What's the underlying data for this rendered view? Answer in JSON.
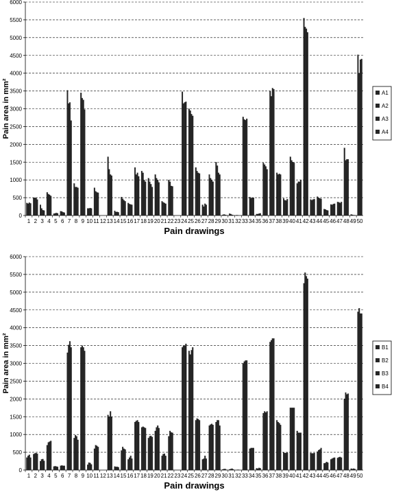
{
  "chart_data": [
    {
      "type": "bar",
      "ylabel": "Pain area in mm²",
      "xlabel": "Pain drawings",
      "ylim": [
        0,
        6000
      ],
      "ytick_step": 500,
      "grid": "horizontal dashed",
      "legend_position": "right",
      "categories": [
        "1",
        "2",
        "3",
        "4",
        "5",
        "6",
        "7",
        "8",
        "9",
        "10",
        "11",
        "12",
        "13",
        "14",
        "15",
        "16",
        "17",
        "18",
        "19",
        "20",
        "21",
        "22",
        "23",
        "24",
        "25",
        "26",
        "27",
        "28",
        "29",
        "30",
        "31",
        "32",
        "33",
        "34",
        "35",
        "36",
        "37",
        "38",
        "39",
        "40",
        "41",
        "42",
        "43",
        "44",
        "45",
        "46",
        "47",
        "48",
        "49",
        "50"
      ],
      "series": [
        {
          "name": "A1",
          "values": [
            350,
            500,
            300,
            650,
            50,
            120,
            3520,
            900,
            3450,
            200,
            780,
            0,
            1650,
            130,
            520,
            350,
            1350,
            1250,
            1050,
            1150,
            400,
            1000,
            0,
            3480,
            3000,
            1350,
            300,
            1150,
            1500,
            20,
            50,
            10,
            2770,
            520,
            40,
            1480,
            3500,
            1200,
            480,
            1650,
            900,
            5550,
            450,
            530,
            180,
            310,
            380,
            1900,
            30,
            4520
          ]
        },
        {
          "name": "A2",
          "values": [
            330,
            500,
            200,
            600,
            60,
            110,
            3150,
            800,
            3300,
            200,
            680,
            0,
            1300,
            100,
            470,
            320,
            1150,
            1200,
            950,
            1050,
            370,
            950,
            0,
            3150,
            2950,
            1250,
            250,
            1050,
            1400,
            30,
            40,
            10,
            2700,
            490,
            40,
            1430,
            3350,
            1150,
            430,
            1550,
            950,
            5300,
            430,
            500,
            170,
            300,
            370,
            1550,
            20,
            4000
          ]
        },
        {
          "name": "A3",
          "values": [
            360,
            490,
            150,
            580,
            70,
            90,
            3180,
            800,
            3250,
            210,
            650,
            0,
            1150,
            100,
            430,
            310,
            1200,
            1000,
            880,
            1000,
            350,
            830,
            0,
            3180,
            2850,
            1200,
            330,
            1000,
            1200,
            20,
            20,
            0,
            2680,
            500,
            50,
            1380,
            3580,
            1170,
            420,
            1500,
            950,
            5250,
            450,
            480,
            150,
            320,
            350,
            1580,
            10,
            4380
          ]
        },
        {
          "name": "A4",
          "values": [
            340,
            450,
            140,
            550,
            60,
            80,
            2670,
            780,
            2980,
            200,
            640,
            0,
            1120,
            90,
            400,
            300,
            1100,
            950,
            800,
            930,
            330,
            820,
            0,
            3200,
            2800,
            1180,
            300,
            950,
            1150,
            10,
            10,
            0,
            2720,
            500,
            60,
            1300,
            3550,
            1150,
            460,
            1480,
            1000,
            5150,
            460,
            470,
            140,
            330,
            380,
            1580,
            10,
            4400
          ]
        }
      ]
    },
    {
      "type": "bar",
      "ylabel": "Pain area in mm²",
      "xlabel": "Pain drawings",
      "ylim": [
        0,
        6000
      ],
      "ytick_step": 500,
      "grid": "horizontal dashed",
      "legend_position": "right",
      "categories": [
        "1",
        "2",
        "3",
        "4",
        "5",
        "6",
        "7",
        "8",
        "9",
        "10",
        "11",
        "12",
        "13",
        "14",
        "15",
        "16",
        "17",
        "18",
        "19",
        "20",
        "21",
        "22",
        "23",
        "24",
        "25",
        "26",
        "27",
        "28",
        "29",
        "30",
        "31",
        "32",
        "33",
        "34",
        "35",
        "36",
        "37",
        "38",
        "39",
        "40",
        "41",
        "42",
        "43",
        "44",
        "45",
        "46",
        "47",
        "48",
        "49",
        "50"
      ],
      "series": [
        {
          "name": "B1",
          "values": [
            350,
            450,
            250,
            700,
            100,
            120,
            3300,
            900,
            3450,
            150,
            600,
            0,
            1550,
            100,
            550,
            300,
            1350,
            1200,
            900,
            1100,
            400,
            950,
            0,
            3450,
            3350,
            1400,
            300,
            1250,
            1350,
            20,
            20,
            0,
            3000,
            600,
            50,
            1600,
            3600,
            1400,
            500,
            1750,
            1100,
            5250,
            480,
            520,
            190,
            300,
            340,
            2000,
            40,
            4450
          ]
        },
        {
          "name": "B2",
          "values": [
            400,
            470,
            300,
            780,
            110,
            130,
            3520,
            980,
            3500,
            210,
            700,
            0,
            1500,
            90,
            650,
            350,
            1380,
            1220,
            950,
            1200,
            450,
            1100,
            0,
            3500,
            3250,
            1450,
            320,
            1280,
            1400,
            30,
            30,
            10,
            3050,
            620,
            40,
            1650,
            3650,
            1350,
            480,
            1750,
            1050,
            5550,
            470,
            560,
            200,
            320,
            360,
            2180,
            30,
            4550
          ]
        },
        {
          "name": "B3",
          "values": [
            430,
            480,
            310,
            800,
            100,
            120,
            3620,
            950,
            3450,
            200,
            680,
            0,
            1650,
            90,
            600,
            400,
            1400,
            1200,
            960,
            1250,
            460,
            1060,
            0,
            3500,
            3370,
            1430,
            400,
            1300,
            1400,
            30,
            40,
            10,
            3080,
            620,
            60,
            1620,
            3700,
            1320,
            480,
            1750,
            1050,
            5450,
            470,
            580,
            230,
            340,
            370,
            2130,
            40,
            4400
          ]
        },
        {
          "name": "B4",
          "values": [
            350,
            460,
            260,
            820,
            90,
            120,
            3450,
            850,
            3350,
            160,
            650,
            0,
            1500,
            80,
            580,
            320,
            1350,
            1180,
            930,
            1180,
            400,
            1050,
            0,
            3550,
            3450,
            1400,
            320,
            1270,
            1250,
            10,
            20,
            0,
            3080,
            620,
            50,
            1650,
            3700,
            1270,
            490,
            1750,
            1050,
            5380,
            480,
            620,
            210,
            350,
            350,
            2150,
            30,
            4400
          ]
        }
      ]
    }
  ]
}
